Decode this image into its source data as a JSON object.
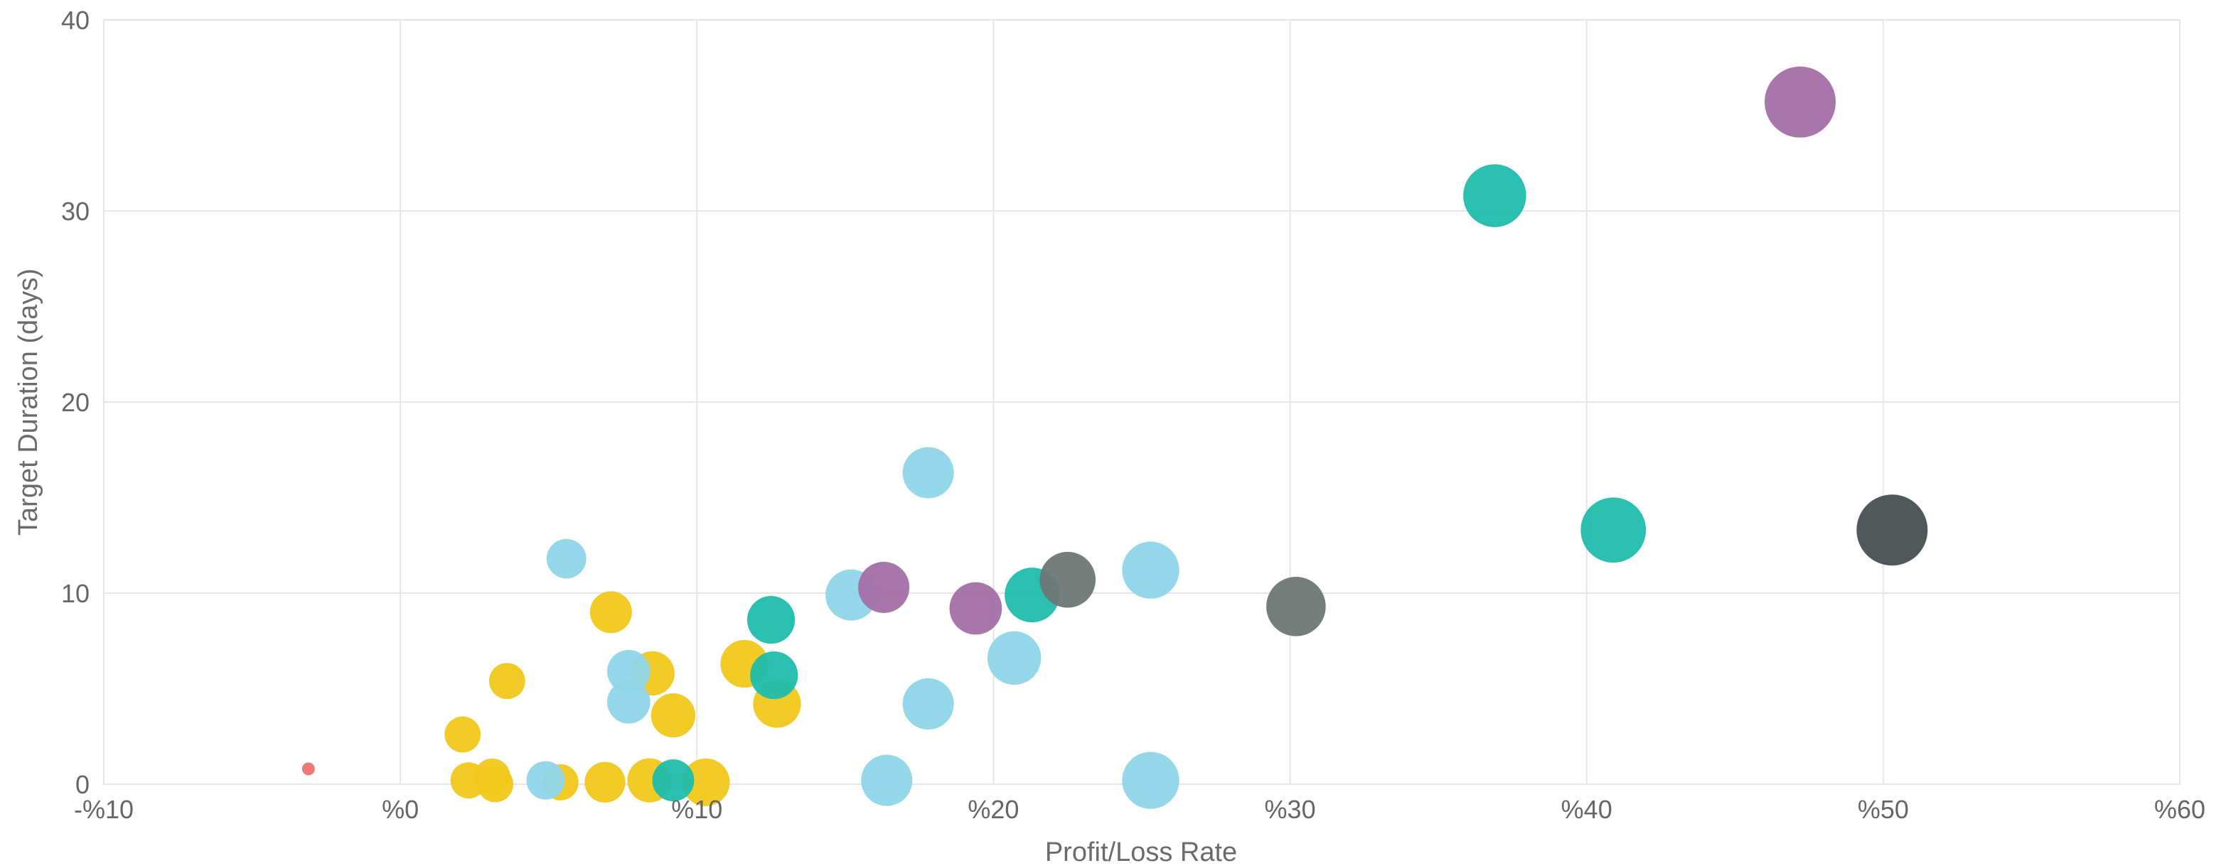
{
  "chart_data": {
    "type": "scatter",
    "title": "",
    "xlabel": "Profit/Loss Rate",
    "ylabel": "Target Duration (days)",
    "xlim": [
      -10,
      60
    ],
    "ylim": [
      0,
      40
    ],
    "x_ticks": [
      -10,
      0,
      10,
      20,
      30,
      40,
      50,
      60
    ],
    "x_tick_labels": [
      "-%10",
      "%0",
      "%10",
      "%20",
      "%30",
      "%40",
      "%50",
      "%60"
    ],
    "y_ticks": [
      0,
      10,
      20,
      30,
      40
    ],
    "y_tick_labels": [
      "0",
      "10",
      "20",
      "30",
      "40"
    ],
    "grid": true,
    "legend": "none",
    "colors": {
      "red": "#f07070",
      "yellow": "#f2c81a",
      "lightblue": "#8fd6ea",
      "teal": "#1fbcad",
      "purple": "#a46fa6",
      "gray": "#6d7775",
      "darkgray": "#465052"
    },
    "points": [
      {
        "x": -3.1,
        "y": 0.8,
        "size": 1,
        "color": "red"
      },
      {
        "x": 2.1,
        "y": 2.6,
        "size": 2,
        "color": "yellow"
      },
      {
        "x": 2.3,
        "y": 0.2,
        "size": 2,
        "color": "yellow"
      },
      {
        "x": 3.1,
        "y": 0.4,
        "size": 2,
        "color": "yellow"
      },
      {
        "x": 3.2,
        "y": 0.0,
        "size": 2,
        "color": "yellow"
      },
      {
        "x": 3.6,
        "y": 5.4,
        "size": 2,
        "color": "yellow"
      },
      {
        "x": 5.4,
        "y": 0.1,
        "size": 2,
        "color": "yellow"
      },
      {
        "x": 6.9,
        "y": 0.1,
        "size": 2.4,
        "color": "yellow"
      },
      {
        "x": 7.1,
        "y": 9.0,
        "size": 2.5,
        "color": "yellow"
      },
      {
        "x": 8.5,
        "y": 5.8,
        "size": 2.7,
        "color": "yellow"
      },
      {
        "x": 8.4,
        "y": 0.2,
        "size": 2.7,
        "color": "yellow"
      },
      {
        "x": 9.2,
        "y": 3.6,
        "size": 2.7,
        "color": "yellow"
      },
      {
        "x": 10.3,
        "y": 0.1,
        "size": 3,
        "color": "yellow"
      },
      {
        "x": 11.6,
        "y": 6.3,
        "size": 3,
        "color": "yellow"
      },
      {
        "x": 12.7,
        "y": 4.2,
        "size": 3,
        "color": "yellow"
      },
      {
        "x": 4.9,
        "y": 0.2,
        "size": 2.2,
        "color": "lightblue"
      },
      {
        "x": 5.6,
        "y": 11.8,
        "size": 2.3,
        "color": "lightblue"
      },
      {
        "x": 7.7,
        "y": 5.9,
        "size": 2.6,
        "color": "lightblue"
      },
      {
        "x": 7.7,
        "y": 4.3,
        "size": 2.6,
        "color": "lightblue"
      },
      {
        "x": 15.2,
        "y": 9.9,
        "size": 3.3,
        "color": "lightblue"
      },
      {
        "x": 16.4,
        "y": 0.2,
        "size": 3.3,
        "color": "lightblue"
      },
      {
        "x": 17.8,
        "y": 16.3,
        "size": 3.3,
        "color": "lightblue"
      },
      {
        "x": 17.8,
        "y": 4.2,
        "size": 3.3,
        "color": "lightblue"
      },
      {
        "x": 20.7,
        "y": 6.6,
        "size": 3.5,
        "color": "lightblue"
      },
      {
        "x": 25.3,
        "y": 11.2,
        "size": 3.8,
        "color": "lightblue"
      },
      {
        "x": 25.3,
        "y": 0.2,
        "size": 3.8,
        "color": "lightblue"
      },
      {
        "x": 9.2,
        "y": 0.2,
        "size": 2.5,
        "color": "teal"
      },
      {
        "x": 12.5,
        "y": 8.6,
        "size": 3,
        "color": "teal"
      },
      {
        "x": 12.6,
        "y": 5.7,
        "size": 3,
        "color": "teal"
      },
      {
        "x": 21.3,
        "y": 9.9,
        "size": 3.6,
        "color": "teal"
      },
      {
        "x": 36.9,
        "y": 30.8,
        "size": 4.3,
        "color": "teal"
      },
      {
        "x": 40.9,
        "y": 13.3,
        "size": 4.5,
        "color": "teal"
      },
      {
        "x": 16.3,
        "y": 10.3,
        "size": 3.3,
        "color": "purple"
      },
      {
        "x": 19.4,
        "y": 9.2,
        "size": 3.4,
        "color": "purple"
      },
      {
        "x": 47.2,
        "y": 35.7,
        "size": 5,
        "color": "purple"
      },
      {
        "x": 22.5,
        "y": 10.7,
        "size": 3.7,
        "color": "gray"
      },
      {
        "x": 30.2,
        "y": 9.3,
        "size": 4,
        "color": "gray"
      },
      {
        "x": 50.3,
        "y": 13.3,
        "size": 5,
        "color": "darkgray"
      }
    ]
  }
}
